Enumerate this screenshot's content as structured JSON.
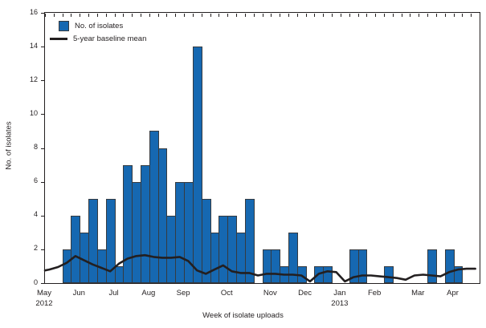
{
  "figure": {
    "xlabel": "Week of isolate uploads",
    "ylabel": "No. of isolates"
  },
  "legend": [
    {
      "label": "No. of isolates"
    },
    {
      "label": "5-year baseline mean"
    }
  ],
  "colors": {
    "bar_fill": "#1668b1",
    "bar_border": "#363b40",
    "baseline_line": "#231f20",
    "axis": "#231f20",
    "text": "#231f20"
  },
  "chart_data": {
    "type": "bar",
    "title": "",
    "xlabel": "Week of isolate uploads",
    "ylabel": "No. of isolates",
    "ylim": [
      0,
      16
    ],
    "yticks": [
      0,
      2,
      4,
      6,
      8,
      10,
      12,
      14,
      16
    ],
    "grid": false,
    "legend_position": "top-left-inside",
    "weeks_total": 50,
    "month_ticks": [
      {
        "label": "May",
        "week": 0,
        "year": "2012"
      },
      {
        "label": "Jun",
        "week": 4
      },
      {
        "label": "Jul",
        "week": 8
      },
      {
        "label": "Aug",
        "week": 12
      },
      {
        "label": "Sep",
        "week": 16
      },
      {
        "label": "Oct",
        "week": 21
      },
      {
        "label": "Nov",
        "week": 26
      },
      {
        "label": "Dec",
        "week": 30
      },
      {
        "label": "Jan",
        "week": 34,
        "year": "2013"
      },
      {
        "label": "Feb",
        "week": 38
      },
      {
        "label": "Mar",
        "week": 43
      },
      {
        "label": "Apr",
        "week": 47
      }
    ],
    "series": [
      {
        "name": "No. of isolates",
        "render": "bar",
        "values": [
          0,
          0,
          2,
          4,
          3,
          5,
          2,
          5,
          1,
          7,
          6,
          7,
          9,
          8,
          4,
          6,
          6,
          14,
          5,
          3,
          4,
          4,
          3,
          5,
          0,
          2,
          2,
          1,
          3,
          1,
          0,
          1,
          1,
          0,
          0,
          2,
          2,
          0,
          0,
          1,
          0,
          0,
          0,
          0,
          2,
          0,
          2,
          1,
          0,
          0
        ]
      },
      {
        "name": "5-year baseline mean",
        "render": "line",
        "note": "first point at left axis, then one point per week center",
        "values": [
          0.75,
          0.8,
          0.95,
          1.2,
          1.6,
          1.35,
          1.1,
          0.9,
          0.7,
          1.15,
          1.45,
          1.6,
          1.65,
          1.55,
          1.5,
          1.5,
          1.55,
          1.3,
          0.75,
          0.55,
          0.8,
          1.05,
          0.7,
          0.6,
          0.6,
          0.45,
          0.55,
          0.55,
          0.5,
          0.5,
          0.45,
          0.1,
          0.55,
          0.7,
          0.65,
          0.1,
          0.35,
          0.45,
          0.45,
          0.4,
          0.35,
          0.3,
          0.2,
          0.45,
          0.5,
          0.45,
          0.4,
          0.65,
          0.8,
          0.85,
          0.85
        ]
      }
    ]
  }
}
